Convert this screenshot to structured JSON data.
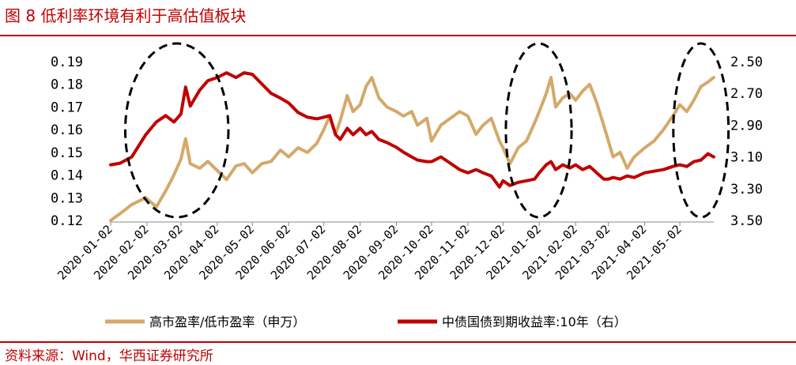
{
  "header": {
    "title": "图 8  低利率环境有利于高估值板块"
  },
  "footer": {
    "source": "资料来源：Wind，华西证券研究所"
  },
  "colors": {
    "accent": "#c00000",
    "series_left": "#d4a96a",
    "series_right": "#c00000"
  },
  "chart_data": {
    "type": "line",
    "title": "低利率环境有利于高估值板块",
    "x_ticks": [
      "2020-01-02",
      "2020-02-02",
      "2020-03-02",
      "2020-04-02",
      "2020-05-02",
      "2020-06-02",
      "2020-07-02",
      "2020-08-02",
      "2020-09-02",
      "2020-10-02",
      "2020-11-02",
      "2020-12-02",
      "2021-01-02",
      "2021-02-02",
      "2021-03-02",
      "2021-04-02",
      "2021-05-02"
    ],
    "y_left": {
      "ticks": [
        "0.12",
        "0.13",
        "0.14",
        "0.15",
        "0.16",
        "0.17",
        "0.18",
        "0.19"
      ],
      "range": [
        0.12,
        0.19
      ]
    },
    "y_right": {
      "ticks": [
        "2.50",
        "2.70",
        "2.90",
        "3.10",
        "3.30",
        "3.50"
      ],
      "range": [
        2.5,
        3.5
      ],
      "inverted": true
    },
    "series": [
      {
        "name": "高市盈率/低市盈率（申万）",
        "axis": "left",
        "points": [
          [
            "2020-01-02",
            0.12
          ],
          [
            "2020-01-10",
            0.123
          ],
          [
            "2020-01-20",
            0.127
          ],
          [
            "2020-02-01",
            0.13
          ],
          [
            "2020-02-10",
            0.126
          ],
          [
            "2020-02-18",
            0.133
          ],
          [
            "2020-02-25",
            0.14
          ],
          [
            "2020-03-02",
            0.147
          ],
          [
            "2020-03-06",
            0.156
          ],
          [
            "2020-03-10",
            0.145
          ],
          [
            "2020-03-18",
            0.143
          ],
          [
            "2020-03-25",
            0.146
          ],
          [
            "2020-04-02",
            0.142
          ],
          [
            "2020-04-10",
            0.138
          ],
          [
            "2020-04-18",
            0.144
          ],
          [
            "2020-04-25",
            0.145
          ],
          [
            "2020-05-02",
            0.141
          ],
          [
            "2020-05-10",
            0.145
          ],
          [
            "2020-05-18",
            0.146
          ],
          [
            "2020-05-26",
            0.151
          ],
          [
            "2020-06-02",
            0.148
          ],
          [
            "2020-06-10",
            0.152
          ],
          [
            "2020-06-18",
            0.15
          ],
          [
            "2020-06-26",
            0.154
          ],
          [
            "2020-07-02",
            0.16
          ],
          [
            "2020-07-07",
            0.166
          ],
          [
            "2020-07-12",
            0.158
          ],
          [
            "2020-07-16",
            0.164
          ],
          [
            "2020-07-22",
            0.175
          ],
          [
            "2020-07-27",
            0.168
          ],
          [
            "2020-08-02",
            0.171
          ],
          [
            "2020-08-07",
            0.179
          ],
          [
            "2020-08-12",
            0.183
          ],
          [
            "2020-08-18",
            0.174
          ],
          [
            "2020-08-25",
            0.17
          ],
          [
            "2020-09-02",
            0.168
          ],
          [
            "2020-09-08",
            0.166
          ],
          [
            "2020-09-15",
            0.168
          ],
          [
            "2020-09-20",
            0.162
          ],
          [
            "2020-09-28",
            0.165
          ],
          [
            "2020-10-02",
            0.155
          ],
          [
            "2020-10-10",
            0.162
          ],
          [
            "2020-10-18",
            0.165
          ],
          [
            "2020-10-26",
            0.168
          ],
          [
            "2020-11-02",
            0.166
          ],
          [
            "2020-11-09",
            0.158
          ],
          [
            "2020-11-15",
            0.162
          ],
          [
            "2020-11-22",
            0.165
          ],
          [
            "2020-11-29",
            0.155
          ],
          [
            "2020-12-02",
            0.152
          ],
          [
            "2020-12-08",
            0.145
          ],
          [
            "2020-12-15",
            0.152
          ],
          [
            "2020-12-22",
            0.155
          ],
          [
            "2020-12-29",
            0.163
          ],
          [
            "2021-01-02",
            0.168
          ],
          [
            "2021-01-08",
            0.176
          ],
          [
            "2021-01-12",
            0.183
          ],
          [
            "2021-01-16",
            0.17
          ],
          [
            "2021-01-22",
            0.174
          ],
          [
            "2021-01-28",
            0.176
          ],
          [
            "2021-02-02",
            0.173
          ],
          [
            "2021-02-08",
            0.177
          ],
          [
            "2021-02-14",
            0.18
          ],
          [
            "2021-02-20",
            0.172
          ],
          [
            "2021-02-26",
            0.162
          ],
          [
            "2021-03-02",
            0.155
          ],
          [
            "2021-03-06",
            0.148
          ],
          [
            "2021-03-12",
            0.15
          ],
          [
            "2021-03-18",
            0.143
          ],
          [
            "2021-03-24",
            0.148
          ],
          [
            "2021-04-02",
            0.152
          ],
          [
            "2021-04-10",
            0.155
          ],
          [
            "2021-04-18",
            0.16
          ],
          [
            "2021-04-26",
            0.166
          ],
          [
            "2021-05-02",
            0.171
          ],
          [
            "2021-05-08",
            0.168
          ],
          [
            "2021-05-14",
            0.173
          ],
          [
            "2021-05-20",
            0.179
          ],
          [
            "2021-05-26",
            0.181
          ],
          [
            "2021-05-31",
            0.183
          ]
        ]
      },
      {
        "name": "中债国债到期收益率:10年（右）",
        "axis": "right",
        "points": [
          [
            "2020-01-02",
            3.15
          ],
          [
            "2020-01-10",
            3.14
          ],
          [
            "2020-01-20",
            3.1
          ],
          [
            "2020-02-01",
            2.96
          ],
          [
            "2020-02-10",
            2.88
          ],
          [
            "2020-02-18",
            2.84
          ],
          [
            "2020-02-25",
            2.88
          ],
          [
            "2020-03-02",
            2.83
          ],
          [
            "2020-03-06",
            2.66
          ],
          [
            "2020-03-10",
            2.78
          ],
          [
            "2020-03-18",
            2.68
          ],
          [
            "2020-03-25",
            2.62
          ],
          [
            "2020-04-02",
            2.6
          ],
          [
            "2020-04-10",
            2.57
          ],
          [
            "2020-04-18",
            2.6
          ],
          [
            "2020-04-25",
            2.57
          ],
          [
            "2020-05-02",
            2.58
          ],
          [
            "2020-05-10",
            2.64
          ],
          [
            "2020-05-18",
            2.7
          ],
          [
            "2020-05-26",
            2.73
          ],
          [
            "2020-06-02",
            2.76
          ],
          [
            "2020-06-10",
            2.82
          ],
          [
            "2020-06-18",
            2.85
          ],
          [
            "2020-06-26",
            2.86
          ],
          [
            "2020-07-02",
            2.85
          ],
          [
            "2020-07-07",
            2.84
          ],
          [
            "2020-07-12",
            2.96
          ],
          [
            "2020-07-16",
            2.99
          ],
          [
            "2020-07-22",
            2.92
          ],
          [
            "2020-07-27",
            2.96
          ],
          [
            "2020-08-02",
            2.92
          ],
          [
            "2020-08-07",
            2.96
          ],
          [
            "2020-08-12",
            2.94
          ],
          [
            "2020-08-18",
            2.99
          ],
          [
            "2020-08-25",
            3.01
          ],
          [
            "2020-09-02",
            3.04
          ],
          [
            "2020-09-08",
            3.07
          ],
          [
            "2020-09-15",
            3.1
          ],
          [
            "2020-09-20",
            3.12
          ],
          [
            "2020-09-28",
            3.13
          ],
          [
            "2020-10-02",
            3.13
          ],
          [
            "2020-10-10",
            3.1
          ],
          [
            "2020-10-18",
            3.14
          ],
          [
            "2020-10-26",
            3.18
          ],
          [
            "2020-11-02",
            3.2
          ],
          [
            "2020-11-09",
            3.18
          ],
          [
            "2020-11-15",
            3.2
          ],
          [
            "2020-11-22",
            3.22
          ],
          [
            "2020-11-29",
            3.29
          ],
          [
            "2020-12-02",
            3.25
          ],
          [
            "2020-12-08",
            3.28
          ],
          [
            "2020-12-15",
            3.26
          ],
          [
            "2020-12-22",
            3.25
          ],
          [
            "2020-12-29",
            3.24
          ],
          [
            "2021-01-02",
            3.2
          ],
          [
            "2021-01-08",
            3.15
          ],
          [
            "2021-01-12",
            3.13
          ],
          [
            "2021-01-16",
            3.18
          ],
          [
            "2021-01-22",
            3.15
          ],
          [
            "2021-01-28",
            3.17
          ],
          [
            "2021-02-02",
            3.15
          ],
          [
            "2021-02-08",
            3.18
          ],
          [
            "2021-02-14",
            3.16
          ],
          [
            "2021-02-20",
            3.2
          ],
          [
            "2021-02-26",
            3.24
          ],
          [
            "2021-03-02",
            3.24
          ],
          [
            "2021-03-06",
            3.23
          ],
          [
            "2021-03-12",
            3.24
          ],
          [
            "2021-03-18",
            3.22
          ],
          [
            "2021-03-24",
            3.23
          ],
          [
            "2021-04-02",
            3.2
          ],
          [
            "2021-04-10",
            3.19
          ],
          [
            "2021-04-18",
            3.18
          ],
          [
            "2021-04-26",
            3.16
          ],
          [
            "2021-05-02",
            3.15
          ],
          [
            "2021-05-08",
            3.16
          ],
          [
            "2021-05-14",
            3.13
          ],
          [
            "2021-05-20",
            3.12
          ],
          [
            "2021-05-26",
            3.08
          ],
          [
            "2021-05-31",
            3.1
          ]
        ]
      }
    ],
    "annotations": [
      {
        "shape": "dashed-ellipse",
        "x_from": "2020-02-01",
        "x_to": "2020-03-25"
      },
      {
        "shape": "dashed-ellipse",
        "x_from": "2020-12-22",
        "x_to": "2021-01-12"
      },
      {
        "shape": "dashed-ellipse",
        "x_from": "2021-05-14",
        "x_to": "2021-05-26"
      }
    ],
    "legend": {
      "position": "bottom",
      "items": [
        "高市盈率/低市盈率（申万）",
        "中债国债到期收益率:10年（右）"
      ]
    }
  }
}
